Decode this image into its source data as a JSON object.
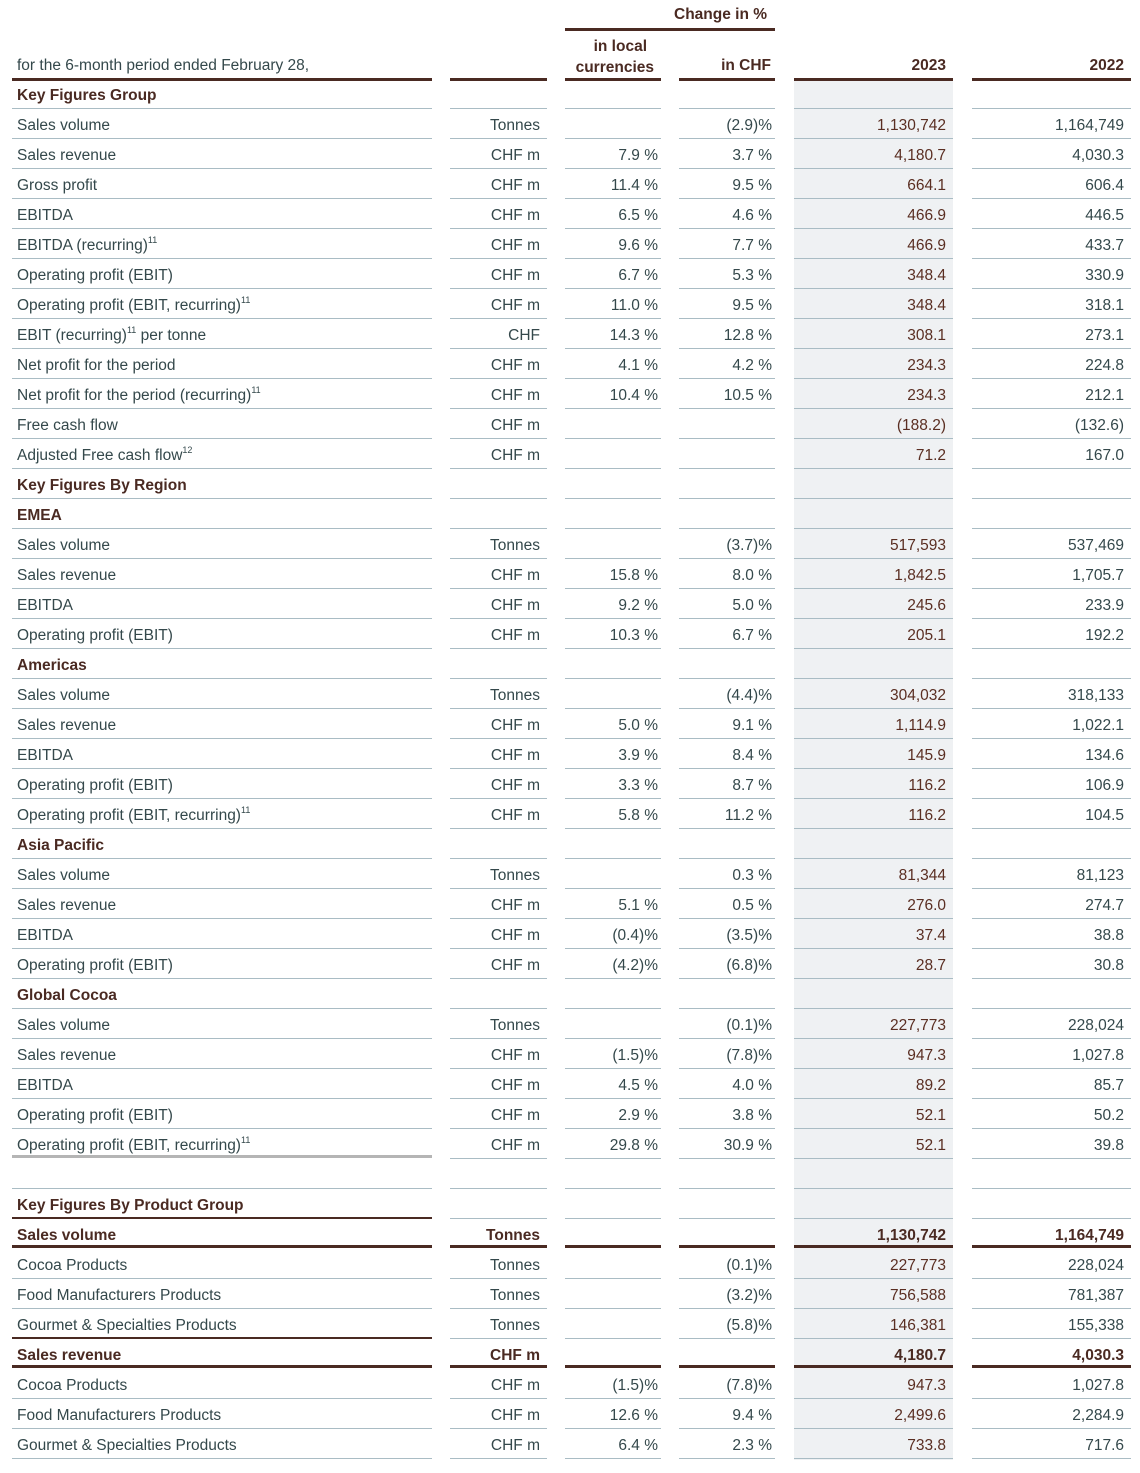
{
  "header": {
    "period_label": "for the 6-month period ended February 28,",
    "change_label": "Change in %",
    "local_label_1": "in local",
    "local_label_2": "currencies",
    "chf_label": "in CHF",
    "year_current": "2023",
    "year_prior": "2022"
  },
  "colors": {
    "brand_brown": "#4a2a22",
    "text": "#34484b",
    "rule": "#a9bcc4",
    "shade": "#eff1f3"
  },
  "rows": [
    {
      "type": "section",
      "label": "Key Figures Group"
    },
    {
      "label": "Sales volume",
      "unit": "Tonnes",
      "local": "",
      "chf": "(2.9)%",
      "y2023": "1,130,742",
      "y2022": "1,164,749"
    },
    {
      "label": "Sales revenue",
      "unit": "CHF m",
      "local": "7.9 %",
      "chf": "3.7 %",
      "y2023": "4,180.7",
      "y2022": "4,030.3"
    },
    {
      "label": "Gross profit",
      "unit": "CHF m",
      "local": "11.4 %",
      "chf": "9.5 %",
      "y2023": "664.1",
      "y2022": "606.4"
    },
    {
      "label": "EBITDA",
      "unit": "CHF m",
      "local": "6.5 %",
      "chf": "4.6 %",
      "y2023": "466.9",
      "y2022": "446.5"
    },
    {
      "label": "EBITDA (recurring)",
      "sup": "11",
      "unit": "CHF m",
      "local": "9.6 %",
      "chf": "7.7 %",
      "y2023": "466.9",
      "y2022": "433.7"
    },
    {
      "label": "Operating profit (EBIT)",
      "unit": "CHF m",
      "local": "6.7 %",
      "chf": "5.3 %",
      "y2023": "348.4",
      "y2022": "330.9"
    },
    {
      "label": "Operating profit (EBIT, recurring)",
      "sup": "11",
      "unit": "CHF m",
      "local": "11.0 %",
      "chf": "9.5 %",
      "y2023": "348.4",
      "y2022": "318.1"
    },
    {
      "label": "EBIT (recurring)",
      "sup": "11",
      "suffix": " per tonne",
      "unit": "CHF",
      "local": "14.3 %",
      "chf": "12.8 %",
      "y2023": "308.1",
      "y2022": "273.1"
    },
    {
      "label": "Net profit for the period",
      "unit": "CHF m",
      "local": "4.1 %",
      "chf": "4.2 %",
      "y2023": "234.3",
      "y2022": "224.8"
    },
    {
      "label": "Net profit for the period (recurring)",
      "sup": "11",
      "unit": "CHF m",
      "local": "10.4 %",
      "chf": "10.5 %",
      "y2023": "234.3",
      "y2022": "212.1"
    },
    {
      "label": "Free cash flow",
      "unit": "CHF m",
      "local": "",
      "chf": "",
      "y2023": "(188.2)",
      "y2022": "(132.6)"
    },
    {
      "label": "Adjusted Free cash flow",
      "sup": "12",
      "unit": "CHF m",
      "local": "",
      "chf": "",
      "y2023": "71.2",
      "y2022": "167.0"
    },
    {
      "type": "section",
      "label": "Key Figures By Region"
    },
    {
      "type": "section",
      "label": "EMEA"
    },
    {
      "label": "Sales volume",
      "unit": "Tonnes",
      "local": "",
      "chf": "(3.7)%",
      "y2023": "517,593",
      "y2022": "537,469"
    },
    {
      "label": "Sales revenue",
      "unit": "CHF m",
      "local": "15.8 %",
      "chf": "8.0 %",
      "y2023": "1,842.5",
      "y2022": "1,705.7"
    },
    {
      "label": "EBITDA",
      "unit": "CHF m",
      "local": "9.2 %",
      "chf": "5.0 %",
      "y2023": "245.6",
      "y2022": "233.9"
    },
    {
      "label": "Operating profit (EBIT)",
      "unit": "CHF m",
      "local": "10.3 %",
      "chf": "6.7 %",
      "y2023": "205.1",
      "y2022": "192.2"
    },
    {
      "type": "section",
      "label": "Americas"
    },
    {
      "label": "Sales volume",
      "unit": "Tonnes",
      "local": "",
      "chf": "(4.4)%",
      "y2023": "304,032",
      "y2022": "318,133"
    },
    {
      "label": "Sales revenue",
      "unit": "CHF m",
      "local": "5.0 %",
      "chf": "9.1 %",
      "y2023": "1,114.9",
      "y2022": "1,022.1"
    },
    {
      "label": "EBITDA",
      "unit": "CHF m",
      "local": "3.9 %",
      "chf": "8.4 %",
      "y2023": "145.9",
      "y2022": "134.6"
    },
    {
      "label": "Operating profit (EBIT)",
      "unit": "CHF m",
      "local": "3.3 %",
      "chf": "8.7 %",
      "y2023": "116.2",
      "y2022": "106.9"
    },
    {
      "label": "Operating profit (EBIT, recurring)",
      "sup": "11",
      "unit": "CHF m",
      "local": "5.8 %",
      "chf": "11.2 %",
      "y2023": "116.2",
      "y2022": "104.5"
    },
    {
      "type": "section",
      "label": "Asia Pacific"
    },
    {
      "label": "Sales volume",
      "unit": "Tonnes",
      "local": "",
      "chf": "0.3 %",
      "y2023": "81,344",
      "y2022": "81,123"
    },
    {
      "label": "Sales revenue",
      "unit": "CHF m",
      "local": "5.1 %",
      "chf": "0.5 %",
      "y2023": "276.0",
      "y2022": "274.7"
    },
    {
      "label": "EBITDA",
      "unit": "CHF m",
      "local": "(0.4)%",
      "chf": "(3.5)%",
      "y2023": "37.4",
      "y2022": "38.8"
    },
    {
      "label": "Operating profit (EBIT)",
      "unit": "CHF m",
      "local": "(4.2)%",
      "chf": "(6.8)%",
      "y2023": "28.7",
      "y2022": "30.8"
    },
    {
      "type": "section",
      "label": "Global Cocoa"
    },
    {
      "label": "Sales volume",
      "unit": "Tonnes",
      "local": "",
      "chf": "(0.1)%",
      "y2023": "227,773",
      "y2022": "228,024"
    },
    {
      "label": "Sales revenue",
      "unit": "CHF m",
      "local": "(1.5)%",
      "chf": "(7.8)%",
      "y2023": "947.3",
      "y2022": "1,027.8"
    },
    {
      "label": "EBITDA",
      "unit": "CHF m",
      "local": "4.5 %",
      "chf": "4.0 %",
      "y2023": "89.2",
      "y2022": "85.7"
    },
    {
      "label": "Operating profit (EBIT)",
      "unit": "CHF m",
      "local": "2.9 %",
      "chf": "3.8 %",
      "y2023": "52.1",
      "y2022": "50.2"
    },
    {
      "type": "grayl",
      "label": "Operating profit (EBIT, recurring)",
      "sup": "11",
      "unit": "CHF m",
      "local": "29.8 %",
      "chf": "30.9 %",
      "y2023": "52.1",
      "y2022": "39.8"
    },
    {
      "type": "spacer",
      "label": ""
    },
    {
      "type": "section darkl",
      "label": "Key Figures  By Product Group"
    },
    {
      "type": "bold",
      "label": "Sales volume",
      "unit": "Tonnes",
      "local": "",
      "chf": "",
      "y2023": "1,130,742",
      "y2022": "1,164,749"
    },
    {
      "label": "Cocoa Products",
      "unit": "Tonnes",
      "local": "",
      "chf": "(0.1)%",
      "y2023": "227,773",
      "y2022": "228,024"
    },
    {
      "label": "Food Manufacturers Products",
      "unit": "Tonnes",
      "local": "",
      "chf": "(3.2)%",
      "y2023": "756,588",
      "y2022": "781,387"
    },
    {
      "type": "darkl",
      "label": "Gourmet & Specialties Products",
      "unit": "Tonnes",
      "local": "",
      "chf": "(5.8)%",
      "y2023": "146,381",
      "y2022": "155,338"
    },
    {
      "type": "bold",
      "label": "Sales revenue",
      "unit": "CHF m",
      "local": "",
      "chf": "",
      "y2023": "4,180.7",
      "y2022": "4,030.3"
    },
    {
      "label": "Cocoa Products",
      "unit": "CHF m",
      "local": "(1.5)%",
      "chf": "(7.8)%",
      "y2023": "947.3",
      "y2022": "1,027.8"
    },
    {
      "label": "Food Manufacturers Products",
      "unit": "CHF m",
      "local": "12.6 %",
      "chf": "9.4 %",
      "y2023": "2,499.6",
      "y2022": "2,284.9"
    },
    {
      "label": "Gourmet & Specialties Products",
      "unit": "CHF m",
      "local": "6.4 %",
      "chf": "2.3 %",
      "y2023": "733.8",
      "y2022": "717.6"
    }
  ]
}
